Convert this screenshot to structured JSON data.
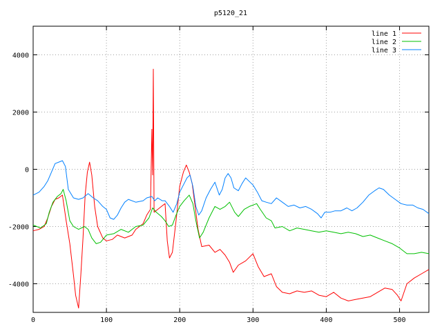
{
  "chart_data": {
    "type": "line",
    "title": "p5120_21",
    "xlabel": "",
    "ylabel": "",
    "xlim": [
      0,
      540
    ],
    "ylim": [
      -5000,
      5000
    ],
    "x_ticks": [
      0,
      100,
      200,
      300,
      400,
      500
    ],
    "y_ticks": [
      -4000,
      -2000,
      0,
      2000,
      4000
    ],
    "grid": true,
    "legend_position": "top-right",
    "series": [
      {
        "name": "line 1",
        "color": "#ff0000",
        "points": [
          [
            0,
            -2150
          ],
          [
            8,
            -2100
          ],
          [
            15,
            -2000
          ],
          [
            20,
            -1700
          ],
          [
            25,
            -1300
          ],
          [
            30,
            -1050
          ],
          [
            35,
            -1000
          ],
          [
            40,
            -900
          ],
          [
            45,
            -1800
          ],
          [
            50,
            -2600
          ],
          [
            55,
            -3700
          ],
          [
            58,
            -4400
          ],
          [
            62,
            -4850
          ],
          [
            65,
            -3700
          ],
          [
            68,
            -2400
          ],
          [
            71,
            -900
          ],
          [
            74,
            -100
          ],
          [
            77,
            250
          ],
          [
            80,
            -200
          ],
          [
            84,
            -1300
          ],
          [
            88,
            -2000
          ],
          [
            95,
            -2400
          ],
          [
            100,
            -2500
          ],
          [
            108,
            -2450
          ],
          [
            115,
            -2300
          ],
          [
            125,
            -2400
          ],
          [
            135,
            -2300
          ],
          [
            140,
            -2100
          ],
          [
            145,
            -2000
          ],
          [
            150,
            -1900
          ],
          [
            155,
            -1600
          ],
          [
            160,
            -1400
          ],
          [
            162,
            1400
          ],
          [
            163,
            -200
          ],
          [
            164,
            3500
          ],
          [
            165,
            -1500
          ],
          [
            170,
            -1400
          ],
          [
            175,
            -1300
          ],
          [
            180,
            -1200
          ],
          [
            183,
            -2500
          ],
          [
            186,
            -3100
          ],
          [
            190,
            -2900
          ],
          [
            195,
            -1800
          ],
          [
            200,
            -600
          ],
          [
            205,
            -100
          ],
          [
            209,
            150
          ],
          [
            213,
            -100
          ],
          [
            217,
            -500
          ],
          [
            221,
            -1300
          ],
          [
            225,
            -2100
          ],
          [
            230,
            -2700
          ],
          [
            240,
            -2650
          ],
          [
            248,
            -2900
          ],
          [
            255,
            -2800
          ],
          [
            262,
            -3000
          ],
          [
            268,
            -3250
          ],
          [
            273,
            -3600
          ],
          [
            280,
            -3350
          ],
          [
            290,
            -3200
          ],
          [
            300,
            -2950
          ],
          [
            307,
            -3400
          ],
          [
            315,
            -3750
          ],
          [
            325,
            -3650
          ],
          [
            332,
            -4100
          ],
          [
            340,
            -4300
          ],
          [
            350,
            -4350
          ],
          [
            360,
            -4250
          ],
          [
            370,
            -4300
          ],
          [
            380,
            -4250
          ],
          [
            390,
            -4400
          ],
          [
            400,
            -4450
          ],
          [
            410,
            -4300
          ],
          [
            420,
            -4500
          ],
          [
            430,
            -4600
          ],
          [
            440,
            -4550
          ],
          [
            450,
            -4500
          ],
          [
            460,
            -4450
          ],
          [
            470,
            -4300
          ],
          [
            480,
            -4150
          ],
          [
            490,
            -4200
          ],
          [
            497,
            -4400
          ],
          [
            502,
            -4600
          ],
          [
            510,
            -4000
          ],
          [
            520,
            -3800
          ],
          [
            530,
            -3650
          ],
          [
            540,
            -3500
          ]
        ]
      },
      {
        "name": "line 2",
        "color": "#00c000",
        "points": [
          [
            0,
            -1950
          ],
          [
            10,
            -2050
          ],
          [
            18,
            -1900
          ],
          [
            22,
            -1500
          ],
          [
            27,
            -1150
          ],
          [
            33,
            -950
          ],
          [
            38,
            -850
          ],
          [
            41,
            -700
          ],
          [
            45,
            -1100
          ],
          [
            50,
            -1800
          ],
          [
            55,
            -2000
          ],
          [
            62,
            -2100
          ],
          [
            70,
            -2000
          ],
          [
            75,
            -2100
          ],
          [
            80,
            -2400
          ],
          [
            86,
            -2600
          ],
          [
            92,
            -2550
          ],
          [
            100,
            -2300
          ],
          [
            110,
            -2250
          ],
          [
            120,
            -2100
          ],
          [
            130,
            -2200
          ],
          [
            140,
            -2000
          ],
          [
            150,
            -1950
          ],
          [
            158,
            -1700
          ],
          [
            163,
            -1350
          ],
          [
            168,
            -1500
          ],
          [
            175,
            -1650
          ],
          [
            180,
            -1800
          ],
          [
            185,
            -2000
          ],
          [
            190,
            -1950
          ],
          [
            195,
            -1600
          ],
          [
            200,
            -1300
          ],
          [
            206,
            -1100
          ],
          [
            213,
            -900
          ],
          [
            218,
            -1200
          ],
          [
            222,
            -1800
          ],
          [
            227,
            -2400
          ],
          [
            232,
            -2200
          ],
          [
            240,
            -1700
          ],
          [
            248,
            -1300
          ],
          [
            255,
            -1400
          ],
          [
            262,
            -1300
          ],
          [
            268,
            -1150
          ],
          [
            275,
            -1500
          ],
          [
            280,
            -1650
          ],
          [
            288,
            -1400
          ],
          [
            295,
            -1300
          ],
          [
            305,
            -1200
          ],
          [
            310,
            -1400
          ],
          [
            318,
            -1700
          ],
          [
            325,
            -1800
          ],
          [
            330,
            -2050
          ],
          [
            340,
            -2000
          ],
          [
            350,
            -2150
          ],
          [
            360,
            -2050
          ],
          [
            370,
            -2100
          ],
          [
            380,
            -2150
          ],
          [
            390,
            -2200
          ],
          [
            400,
            -2150
          ],
          [
            410,
            -2200
          ],
          [
            420,
            -2250
          ],
          [
            430,
            -2200
          ],
          [
            440,
            -2250
          ],
          [
            450,
            -2350
          ],
          [
            460,
            -2300
          ],
          [
            470,
            -2400
          ],
          [
            480,
            -2500
          ],
          [
            490,
            -2600
          ],
          [
            500,
            -2750
          ],
          [
            510,
            -2950
          ],
          [
            520,
            -2950
          ],
          [
            530,
            -2900
          ],
          [
            540,
            -2950
          ]
        ]
      },
      {
        "name": "line 3",
        "color": "#0080ff",
        "points": [
          [
            0,
            -900
          ],
          [
            8,
            -800
          ],
          [
            15,
            -600
          ],
          [
            20,
            -400
          ],
          [
            25,
            -100
          ],
          [
            30,
            200
          ],
          [
            35,
            250
          ],
          [
            40,
            300
          ],
          [
            44,
            100
          ],
          [
            48,
            -700
          ],
          [
            55,
            -1000
          ],
          [
            62,
            -1050
          ],
          [
            68,
            -1000
          ],
          [
            75,
            -850
          ],
          [
            82,
            -1000
          ],
          [
            88,
            -1100
          ],
          [
            95,
            -1300
          ],
          [
            100,
            -1400
          ],
          [
            105,
            -1700
          ],
          [
            110,
            -1750
          ],
          [
            115,
            -1600
          ],
          [
            120,
            -1350
          ],
          [
            125,
            -1150
          ],
          [
            130,
            -1050
          ],
          [
            140,
            -1150
          ],
          [
            150,
            -1100
          ],
          [
            155,
            -1000
          ],
          [
            162,
            -950
          ],
          [
            166,
            -1100
          ],
          [
            170,
            -1000
          ],
          [
            176,
            -1100
          ],
          [
            180,
            -1100
          ],
          [
            186,
            -1300
          ],
          [
            191,
            -1500
          ],
          [
            196,
            -1200
          ],
          [
            200,
            -800
          ],
          [
            205,
            -550
          ],
          [
            210,
            -300
          ],
          [
            214,
            -200
          ],
          [
            218,
            -600
          ],
          [
            222,
            -1300
          ],
          [
            226,
            -1600
          ],
          [
            230,
            -1450
          ],
          [
            236,
            -1000
          ],
          [
            242,
            -700
          ],
          [
            248,
            -450
          ],
          [
            254,
            -900
          ],
          [
            258,
            -700
          ],
          [
            262,
            -300
          ],
          [
            266,
            -150
          ],
          [
            270,
            -300
          ],
          [
            274,
            -650
          ],
          [
            280,
            -750
          ],
          [
            285,
            -500
          ],
          [
            290,
            -300
          ],
          [
            296,
            -450
          ],
          [
            300,
            -550
          ],
          [
            306,
            -800
          ],
          [
            312,
            -1100
          ],
          [
            318,
            -1150
          ],
          [
            325,
            -1200
          ],
          [
            332,
            -1000
          ],
          [
            340,
            -1150
          ],
          [
            348,
            -1300
          ],
          [
            356,
            -1250
          ],
          [
            364,
            -1350
          ],
          [
            372,
            -1300
          ],
          [
            380,
            -1400
          ],
          [
            388,
            -1550
          ],
          [
            393,
            -1700
          ],
          [
            398,
            -1500
          ],
          [
            405,
            -1500
          ],
          [
            412,
            -1450
          ],
          [
            420,
            -1450
          ],
          [
            428,
            -1350
          ],
          [
            435,
            -1450
          ],
          [
            442,
            -1350
          ],
          [
            450,
            -1150
          ],
          [
            458,
            -900
          ],
          [
            466,
            -750
          ],
          [
            472,
            -650
          ],
          [
            478,
            -700
          ],
          [
            486,
            -900
          ],
          [
            494,
            -1050
          ],
          [
            502,
            -1200
          ],
          [
            510,
            -1250
          ],
          [
            518,
            -1250
          ],
          [
            525,
            -1350
          ],
          [
            532,
            -1400
          ],
          [
            540,
            -1550
          ]
        ]
      }
    ]
  }
}
